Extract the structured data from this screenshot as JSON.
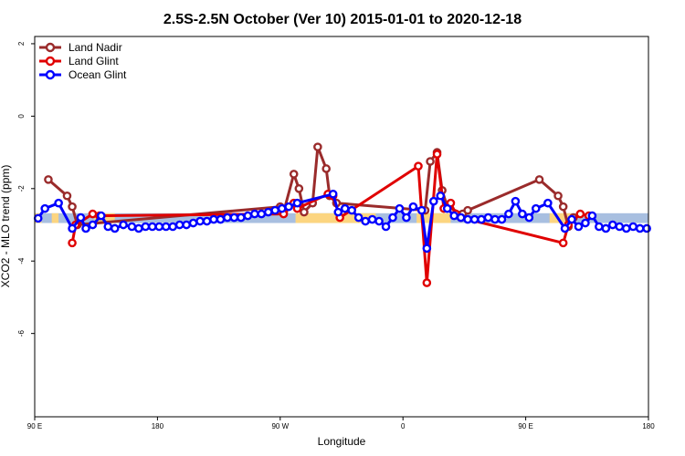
{
  "chart_data": {
    "type": "line",
    "title": "2.5S-2.5N October (Ver 10)   2015-01-01 to 2020-12-18",
    "xlabel": "Longitude",
    "ylabel": "XCO2 - MLO trend (ppm)",
    "xlim": [
      0,
      360
    ],
    "ylim": [
      -8.3,
      2.2
    ],
    "x_ticks": [
      {
        "value": 0,
        "label": "90 E"
      },
      {
        "value": 72,
        "label": "180"
      },
      {
        "value": 144,
        "label": "90 W"
      },
      {
        "value": 216,
        "label": "0"
      },
      {
        "value": 288,
        "label": "90 E"
      },
      {
        "value": 360,
        "label": "180"
      }
    ],
    "y_ticks": [
      {
        "value": 2,
        "label": "2"
      },
      {
        "value": 0,
        "label": "0"
      },
      {
        "value": -2,
        "label": "-2"
      },
      {
        "value": -4,
        "label": "-4"
      },
      {
        "value": -6,
        "label": "-6"
      }
    ],
    "grid": false,
    "legend_position": "top-left",
    "surface_band": {
      "y_range": [
        -2.95,
        -2.68
      ],
      "ocean_color": "#a8bfe0",
      "land_color": "#fcd580",
      "land_segments": [
        [
          0,
          4
        ],
        [
          10,
          14
        ],
        [
          35,
          47
        ],
        [
          153,
          200
        ],
        [
          224,
          244
        ],
        [
          302,
          315
        ]
      ]
    },
    "series": [
      {
        "name": "Land Nadir",
        "color": "#9a2b2b",
        "points": [
          [
            8,
            -1.75
          ],
          [
            19,
            -2.2
          ],
          [
            22,
            -2.5
          ],
          [
            25,
            -3.0
          ],
          [
            144,
            -2.5
          ],
          [
            146,
            -2.65
          ],
          [
            152,
            -1.6
          ],
          [
            155,
            -2.0
          ],
          [
            158,
            -2.65
          ],
          [
            163,
            -2.4
          ],
          [
            166,
            -0.85
          ],
          [
            171,
            -1.45
          ],
          [
            173,
            -2.2
          ],
          [
            177,
            -2.4
          ],
          [
            229,
            -2.6
          ],
          [
            232,
            -1.25
          ],
          [
            236,
            -1.0
          ],
          [
            239,
            -2.05
          ],
          [
            242,
            -2.5
          ],
          [
            251,
            -2.7
          ],
          [
            254,
            -2.6
          ],
          [
            296,
            -1.75
          ],
          [
            307,
            -2.2
          ],
          [
            310,
            -2.5
          ],
          [
            313,
            -3.05
          ],
          [
            316,
            -2.8
          ]
        ]
      },
      {
        "name": "Land Glint",
        "color": "#e00000",
        "points": [
          [
            22,
            -3.5
          ],
          [
            24,
            -3.0
          ],
          [
            34,
            -2.7
          ],
          [
            38,
            -2.75
          ],
          [
            146,
            -2.7
          ],
          [
            152,
            -2.4
          ],
          [
            154,
            -2.55
          ],
          [
            172,
            -2.15
          ],
          [
            175,
            -2.2
          ],
          [
            179,
            -2.8
          ],
          [
            225,
            -1.38
          ],
          [
            230,
            -4.6
          ],
          [
            236,
            -1.05
          ],
          [
            240,
            -2.55
          ],
          [
            244,
            -2.4
          ],
          [
            247,
            -2.7
          ],
          [
            250,
            -2.8
          ],
          [
            310,
            -3.5
          ],
          [
            313,
            -3.0
          ],
          [
            320,
            -2.7
          ],
          [
            325,
            -2.75
          ]
        ]
      },
      {
        "name": "Ocean Glint",
        "color": "#0000ff",
        "points": [
          [
            2,
            -2.82
          ],
          [
            6,
            -2.55
          ],
          [
            14,
            -2.4
          ],
          [
            22,
            -3.1
          ],
          [
            27,
            -2.8
          ],
          [
            30,
            -3.1
          ],
          [
            34,
            -3.0
          ],
          [
            39,
            -2.75
          ],
          [
            43,
            -3.05
          ],
          [
            47,
            -3.1
          ],
          [
            52,
            -3.0
          ],
          [
            57,
            -3.05
          ],
          [
            61,
            -3.1
          ],
          [
            65,
            -3.05
          ],
          [
            69,
            -3.05
          ],
          [
            73,
            -3.05
          ],
          [
            77,
            -3.05
          ],
          [
            81,
            -3.05
          ],
          [
            85,
            -3.0
          ],
          [
            89,
            -3.0
          ],
          [
            93,
            -2.95
          ],
          [
            97,
            -2.9
          ],
          [
            101,
            -2.9
          ],
          [
            105,
            -2.85
          ],
          [
            109,
            -2.85
          ],
          [
            113,
            -2.8
          ],
          [
            117,
            -2.8
          ],
          [
            121,
            -2.8
          ],
          [
            125,
            -2.75
          ],
          [
            129,
            -2.7
          ],
          [
            133,
            -2.7
          ],
          [
            137,
            -2.65
          ],
          [
            141,
            -2.6
          ],
          [
            145,
            -2.55
          ],
          [
            149,
            -2.5
          ],
          [
            154,
            -2.4
          ],
          [
            175,
            -2.15
          ],
          [
            178,
            -2.65
          ],
          [
            182,
            -2.55
          ],
          [
            186,
            -2.6
          ],
          [
            190,
            -2.8
          ],
          [
            194,
            -2.9
          ],
          [
            198,
            -2.85
          ],
          [
            202,
            -2.9
          ],
          [
            206,
            -3.05
          ],
          [
            210,
            -2.8
          ],
          [
            214,
            -2.55
          ],
          [
            218,
            -2.8
          ],
          [
            222,
            -2.5
          ],
          [
            227,
            -2.6
          ],
          [
            230,
            -3.65
          ],
          [
            234,
            -2.35
          ],
          [
            238,
            -2.2
          ],
          [
            242,
            -2.55
          ],
          [
            246,
            -2.75
          ],
          [
            250,
            -2.8
          ],
          [
            254,
            -2.85
          ],
          [
            258,
            -2.85
          ],
          [
            262,
            -2.85
          ],
          [
            266,
            -2.8
          ],
          [
            270,
            -2.85
          ],
          [
            274,
            -2.85
          ],
          [
            278,
            -2.7
          ],
          [
            282,
            -2.35
          ],
          [
            286,
            -2.7
          ],
          [
            290,
            -2.8
          ],
          [
            294,
            -2.55
          ],
          [
            301,
            -2.4
          ],
          [
            311,
            -3.1
          ],
          [
            315,
            -2.85
          ],
          [
            319,
            -3.05
          ],
          [
            323,
            -2.95
          ],
          [
            327,
            -2.75
          ],
          [
            331,
            -3.05
          ],
          [
            335,
            -3.1
          ],
          [
            339,
            -3.0
          ],
          [
            343,
            -3.05
          ],
          [
            347,
            -3.1
          ],
          [
            351,
            -3.05
          ],
          [
            355,
            -3.1
          ],
          [
            359,
            -3.1
          ]
        ]
      }
    ]
  }
}
